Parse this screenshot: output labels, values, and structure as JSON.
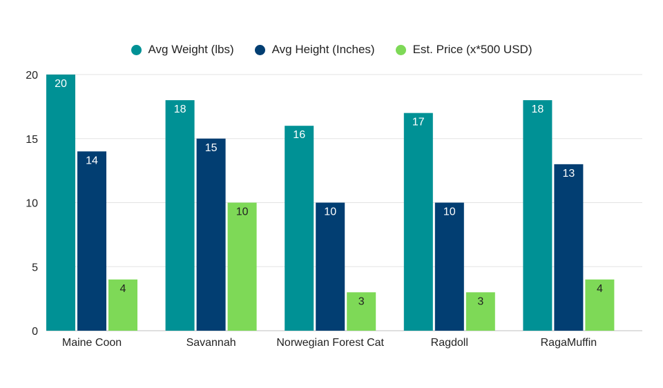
{
  "chart_data": {
    "type": "bar",
    "categories": [
      "Maine Coon",
      "Savannah",
      "Norwegian Forest Cat",
      "Ragdoll",
      "RagaMuffin"
    ],
    "series": [
      {
        "name": "Avg Weight (lbs)",
        "values": [
          20,
          18,
          16,
          17,
          18
        ],
        "color": "#009195"
      },
      {
        "name": "Avg Height (Inches)",
        "values": [
          14,
          15,
          10,
          10,
          13
        ],
        "color": "#023e72"
      },
      {
        "name": "Est. Price (x*500 USD)",
        "values": [
          4,
          10,
          3,
          3,
          4
        ],
        "color": "#7ed957"
      }
    ],
    "yticks": [
      0,
      5,
      10,
      15,
      20
    ],
    "ylim": [
      0,
      20
    ],
    "grid": true,
    "legend_position": "top-center",
    "data_label_color": "#ffffff",
    "price_label_color": "#222222"
  }
}
